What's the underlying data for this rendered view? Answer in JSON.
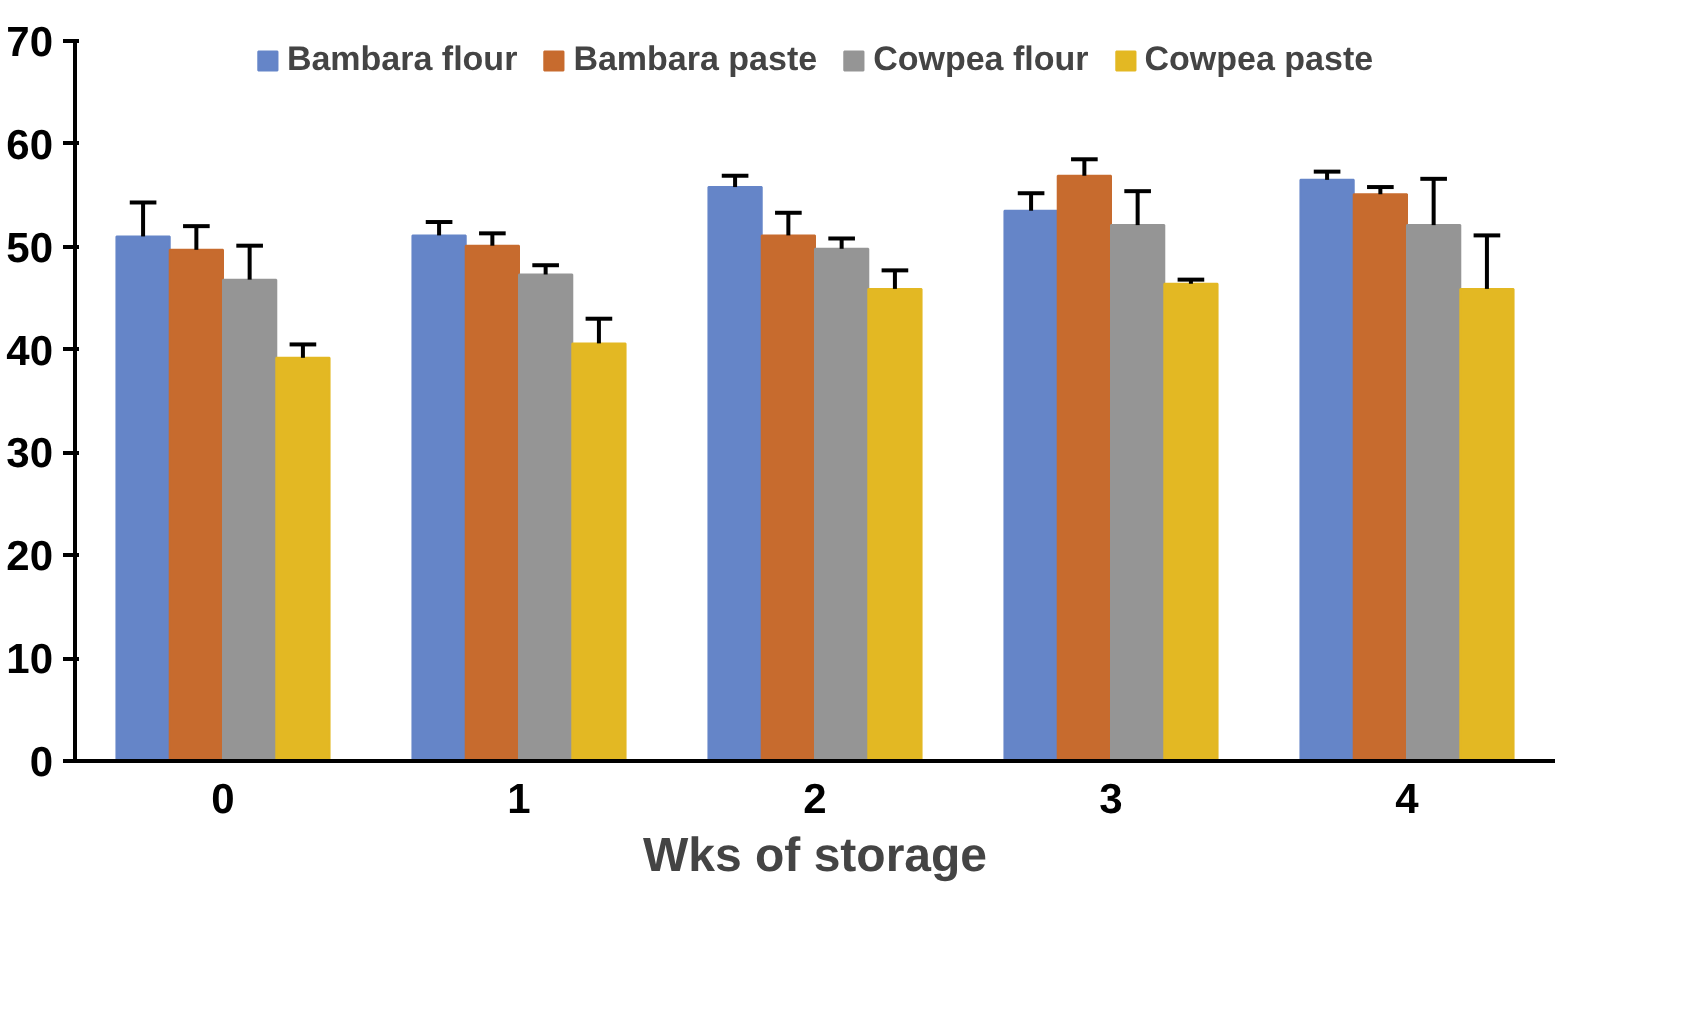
{
  "chart_data": {
    "type": "bar",
    "xlabel": "Wks of storage",
    "categories": [
      "0",
      "1",
      "2",
      "3",
      "4"
    ],
    "series": [
      {
        "name": "Bambara flour",
        "color": "#6585c8",
        "values": [
          51.0,
          51.1,
          55.8,
          53.5,
          56.5
        ],
        "errors": [
          [
            51.0,
            54.3
          ],
          [
            51.1,
            52.4
          ],
          [
            55.8,
            56.9
          ],
          [
            53.5,
            55.2
          ],
          [
            56.5,
            57.3
          ]
        ]
      },
      {
        "name": "Bambara paste",
        "color": "#c76b2e",
        "values": [
          49.7,
          50.1,
          51.1,
          56.9,
          55.1
        ],
        "errors": [
          [
            49.7,
            52.0
          ],
          [
            50.1,
            51.3
          ],
          [
            51.1,
            53.3
          ],
          [
            56.9,
            58.5
          ],
          [
            55.1,
            55.8
          ]
        ]
      },
      {
        "name": "Cowpea flour",
        "color": "#959595",
        "values": [
          46.8,
          47.3,
          49.8,
          52.1,
          52.1
        ],
        "errors": [
          [
            46.8,
            50.1
          ],
          [
            47.3,
            48.2
          ],
          [
            49.8,
            50.8
          ],
          [
            52.1,
            55.4
          ],
          [
            52.1,
            56.6
          ]
        ]
      },
      {
        "name": "Cowpea paste",
        "color": "#e3b823",
        "values": [
          39.2,
          40.6,
          45.9,
          46.4,
          45.9
        ],
        "errors": [
          [
            39.2,
            40.5
          ],
          [
            40.6,
            43.0
          ],
          [
            45.9,
            47.7
          ],
          [
            46.4,
            46.8
          ],
          [
            45.9,
            51.1
          ]
        ]
      }
    ],
    "ylim": [
      0,
      70
    ],
    "yticks": [
      0,
      10,
      20,
      30,
      40,
      50,
      60,
      70
    ],
    "grid": false,
    "legend": "top"
  }
}
